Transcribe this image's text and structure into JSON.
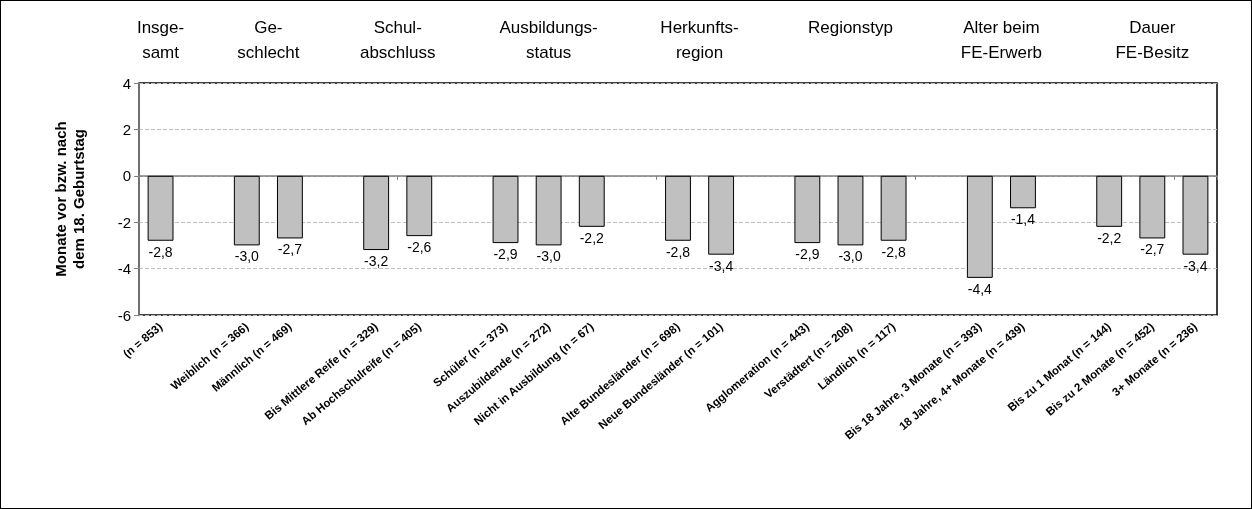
{
  "chart_data": {
    "type": "bar",
    "categories": [
      "(n = 853)",
      null,
      "Weiblich (n = 366)",
      "Männlich (n = 469)",
      null,
      "Bis Mittlere Reife (n = 329)",
      "Ab Hochschulreife (n = 405)",
      null,
      "Schüler (n = 373)",
      "Auszubildende (n = 272)",
      "Nicht in Ausbildung (n = 67)",
      null,
      "Alte Bundesländer (n = 698)",
      "Neue Bundesländer (n = 101)",
      null,
      "Agglomeration (n = 443)",
      "Verstädtert (n = 208)",
      "Ländlich (n = 117)",
      null,
      "Bis 18 Jahre, 3 Monate (n = 393)",
      "18 Jahre, 4+ Monate (n = 439)",
      null,
      "Bis zu 1 Monat (n = 144)",
      "Bis zu 2 Monate (n = 452)",
      "3+ Monate (n = 236)"
    ],
    "values": [
      -2.8,
      null,
      -3.0,
      -2.7,
      null,
      -3.2,
      -2.6,
      null,
      -2.9,
      -3.0,
      -2.2,
      null,
      -2.8,
      -3.4,
      null,
      -2.9,
      -3.0,
      -2.8,
      null,
      -4.4,
      -1.4,
      null,
      -2.2,
      -2.7,
      -3.4
    ],
    "value_labels": [
      "-2,8",
      null,
      "-3,0",
      "-2,7",
      null,
      "-3,2",
      "-2,6",
      null,
      "-2,9",
      "-3,0",
      "-2,2",
      null,
      "-2,8",
      "-3,4",
      null,
      "-2,9",
      "-3,0",
      "-2,8",
      null,
      "-4,4",
      "-1,4",
      null,
      "-2,2",
      "-2,7",
      "-3,4"
    ],
    "color": "#c0c0c0",
    "ylabel": "Monate vor bzw. nach\ndem 18. Geburtstag",
    "ylim": [
      -6,
      4
    ],
    "yticks": [
      -6,
      -4,
      -2,
      0,
      2,
      4
    ],
    "grid": "y",
    "annotations": [
      "Insge-\nsamt",
      "Ge-\nschlecht",
      "Schul-\nabschluss",
      "Ausbildungs-\nstatus",
      "Herkunfts-\nregion",
      "Regionstyp",
      "Alter beim\nFE-Erwerb",
      "Dauer\nFE-Besitz"
    ]
  }
}
